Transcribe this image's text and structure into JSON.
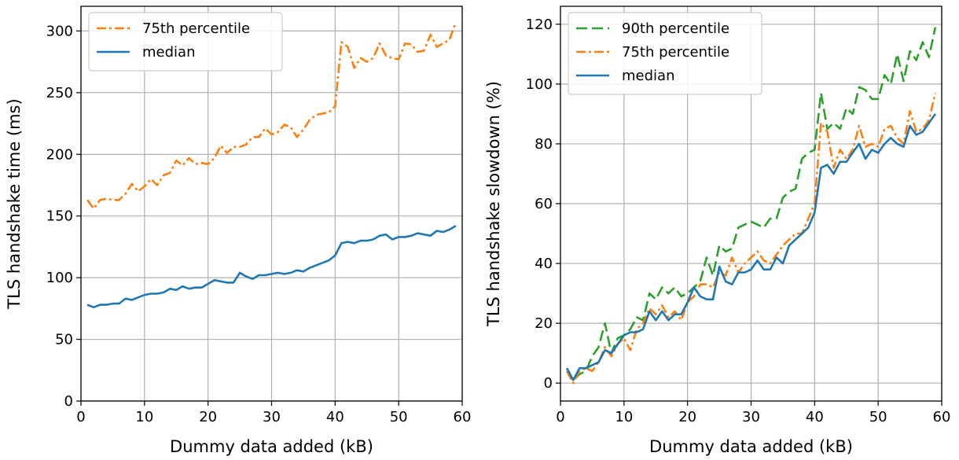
{
  "chart_data": [
    {
      "type": "line",
      "xlabel": "Dummy data added (kB)",
      "ylabel": "TLS handshake time (ms)",
      "xlim": [
        0,
        60
      ],
      "ylim": [
        0,
        320
      ],
      "xticks": [
        0,
        10,
        20,
        30,
        40,
        50,
        60
      ],
      "yticks": [
        0,
        50,
        100,
        150,
        200,
        250,
        300
      ],
      "grid": true,
      "legend_position": "top-left",
      "x": [
        1,
        2,
        3,
        4,
        5,
        6,
        7,
        8,
        9,
        10,
        11,
        12,
        13,
        14,
        15,
        16,
        17,
        18,
        19,
        20,
        21,
        22,
        23,
        24,
        25,
        26,
        27,
        28,
        29,
        30,
        31,
        32,
        33,
        34,
        35,
        36,
        37,
        38,
        39,
        40,
        41,
        42,
        43,
        44,
        45,
        46,
        47,
        48,
        49,
        50,
        51,
        52,
        53,
        54,
        55,
        56,
        57,
        58,
        59
      ],
      "series": [
        {
          "name": "75th percentile",
          "color": "#ff7f0e",
          "style": "dashdot",
          "values": [
            163,
            156,
            163,
            164,
            163,
            163,
            168,
            176,
            170,
            174,
            180,
            175,
            183,
            185,
            195,
            191,
            197,
            192,
            193,
            192,
            197,
            207,
            201,
            206,
            206,
            208,
            214,
            214,
            221,
            216,
            218,
            224,
            222,
            214,
            220,
            228,
            232,
            233,
            234,
            239,
            291,
            287,
            270,
            278,
            275,
            278,
            290,
            280,
            278,
            277,
            290,
            289,
            283,
            284,
            297,
            287,
            290,
            293,
            307
          ]
        },
        {
          "name": "median",
          "color": "#1f77b4",
          "style": "solid",
          "values": [
            78,
            76,
            78,
            78,
            79,
            79,
            83,
            82,
            84,
            86,
            87,
            87,
            88,
            91,
            90,
            93,
            91,
            92,
            92,
            95,
            98,
            97,
            96,
            96,
            104,
            101,
            99,
            102,
            102,
            103,
            104,
            103,
            104,
            106,
            105,
            108,
            110,
            112,
            114,
            118,
            128,
            129,
            128,
            130,
            130,
            131,
            134,
            135,
            131,
            133,
            133,
            134,
            136,
            135,
            134,
            138,
            137,
            139,
            142
          ]
        }
      ]
    },
    {
      "type": "line",
      "xlabel": "Dummy data added (kB)",
      "ylabel": "TLS handshake slowdown (%)",
      "xlim": [
        0,
        60
      ],
      "ylim": [
        -6,
        126
      ],
      "xticks": [
        0,
        10,
        20,
        30,
        40,
        50,
        60
      ],
      "yticks": [
        0,
        20,
        40,
        60,
        80,
        100,
        120
      ],
      "grid": true,
      "legend_position": "top-left",
      "x": [
        1,
        2,
        3,
        4,
        5,
        6,
        7,
        8,
        9,
        10,
        11,
        12,
        13,
        14,
        15,
        16,
        17,
        18,
        19,
        20,
        21,
        22,
        23,
        24,
        25,
        26,
        27,
        28,
        29,
        30,
        31,
        32,
        33,
        34,
        35,
        36,
        37,
        38,
        39,
        40,
        41,
        42,
        43,
        44,
        45,
        46,
        47,
        48,
        49,
        50,
        51,
        52,
        53,
        54,
        55,
        56,
        57,
        58,
        59
      ],
      "series": [
        {
          "name": "90th percentile",
          "color": "#2ca02c",
          "style": "dashed",
          "values": [
            5,
            1,
            3,
            4,
            9,
            12,
            20,
            10,
            15,
            16,
            18,
            22,
            21,
            30,
            28,
            32,
            30,
            32,
            29,
            30,
            32,
            34,
            42,
            36,
            46,
            44,
            45,
            52,
            53,
            54,
            53,
            52,
            55,
            55,
            62,
            64,
            65,
            75,
            77,
            78,
            97,
            85,
            87,
            85,
            92,
            90,
            99,
            98,
            95,
            95,
            103,
            100,
            110,
            101,
            111,
            108,
            114,
            109,
            119
          ]
        },
        {
          "name": "75th percentile",
          "color": "#ff7f0e",
          "style": "dashdot",
          "values": [
            4,
            0,
            4,
            5,
            4,
            7,
            12,
            9,
            13,
            15,
            11,
            18,
            20,
            25,
            23,
            26,
            22,
            24,
            21,
            27,
            29,
            33,
            33,
            32,
            37,
            36,
            42,
            37,
            40,
            42,
            44,
            41,
            40,
            43,
            46,
            48,
            50,
            50,
            55,
            60,
            87,
            84,
            72,
            78,
            75,
            78,
            86,
            79,
            80,
            79,
            85,
            86,
            82,
            80,
            91,
            84,
            85,
            88,
            97
          ]
        },
        {
          "name": "median",
          "color": "#1f77b4",
          "style": "solid",
          "values": [
            5,
            1,
            5,
            5,
            6,
            7,
            11,
            10,
            13,
            16,
            17,
            17,
            18,
            24,
            21,
            24,
            21,
            23,
            23,
            27,
            32,
            29,
            28,
            28,
            39,
            34,
            33,
            37,
            37,
            38,
            41,
            38,
            38,
            42,
            40,
            46,
            48,
            50,
            52,
            57,
            72,
            73,
            70,
            74,
            74,
            77,
            80,
            75,
            78,
            77,
            80,
            82,
            80,
            79,
            86,
            83,
            84,
            87,
            90
          ]
        }
      ]
    }
  ]
}
